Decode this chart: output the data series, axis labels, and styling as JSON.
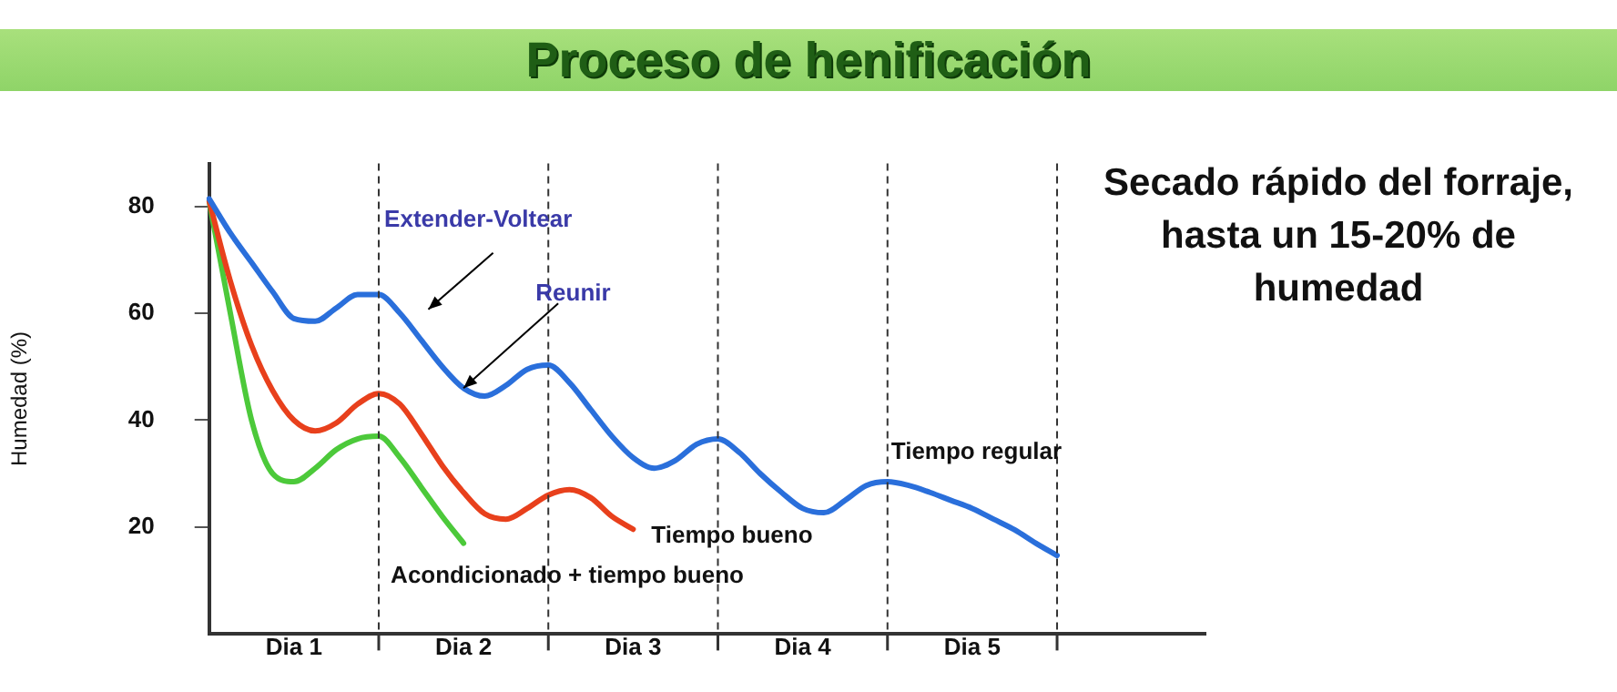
{
  "chart_data": {
    "type": "line",
    "title": "Proceso de henificación",
    "ylabel": "Humedad (%)",
    "ylim": [
      0,
      88
    ],
    "yticks": [
      20,
      40,
      60,
      80
    ],
    "categories": [
      null,
      null,
      null,
      null,
      "Dia 1",
      null,
      null,
      null,
      null,
      null,
      null,
      null,
      "Dia 2",
      null,
      null,
      null,
      null,
      null,
      null,
      null,
      "Dia 3",
      null,
      null,
      null,
      null,
      null,
      null,
      null,
      "Dia 4",
      null,
      null,
      null,
      null,
      null,
      null,
      null,
      "Dia 5",
      null,
      null,
      null,
      null,
      null,
      null,
      null,
      null,
      null,
      null,
      null
    ],
    "grid": "x",
    "legend": false,
    "marker": "none",
    "line_style": "solid",
    "series": [
      {
        "name": "Tiempo regular",
        "color": "#2a6fdb",
        "values": [
          81.4,
          75,
          69.5,
          64,
          59,
          58.5,
          61,
          63.5,
          63.5,
          60,
          55,
          50,
          46,
          44.5,
          46.5,
          49.5,
          50.3,
          47,
          42,
          37,
          33,
          31,
          32.5,
          35.5,
          36.5,
          34,
          30,
          26.5,
          23.5,
          22.7,
          25,
          27.8,
          28.5,
          27.8,
          26.5,
          25,
          23.5,
          21.5,
          19.5,
          17,
          14.7,
          null,
          null,
          null,
          null,
          null,
          null,
          null
        ]
      },
      {
        "name": "Tiempo bueno",
        "color": "#e8401c",
        "values": [
          81,
          66,
          54,
          45.5,
          40,
          38,
          39.5,
          43,
          45,
          43,
          37.5,
          31.5,
          26.5,
          22.5,
          21.5,
          23.5,
          26,
          27,
          25.5,
          22,
          19.6,
          null,
          null,
          null,
          null,
          null,
          null,
          null,
          null,
          null,
          null,
          null,
          null,
          null,
          null,
          null,
          null,
          null,
          null,
          null,
          null,
          null,
          null,
          null,
          null,
          null,
          null,
          null
        ]
      },
      {
        "name": "Acondicionado + tiempo bueno",
        "color": "#4cc93a",
        "values": [
          81,
          60,
          40,
          30,
          28.5,
          31,
          34.5,
          36.5,
          37,
          33,
          27.5,
          22,
          17,
          null,
          null,
          null,
          null,
          null,
          null,
          null,
          null,
          null,
          null,
          null,
          null,
          null,
          null,
          null,
          null,
          null,
          null,
          null,
          null,
          null,
          null,
          null,
          null,
          null,
          null,
          null,
          null,
          null,
          null,
          null,
          null,
          null,
          null,
          null
        ]
      }
    ],
    "annotations": [
      "Extender-Voltear",
      {
        "text": "Reunir",
        "x": "Dia 2",
        "y": 46
      },
      "Secado rápido del forraje, hasta un 15-20% de humedad"
    ]
  }
}
